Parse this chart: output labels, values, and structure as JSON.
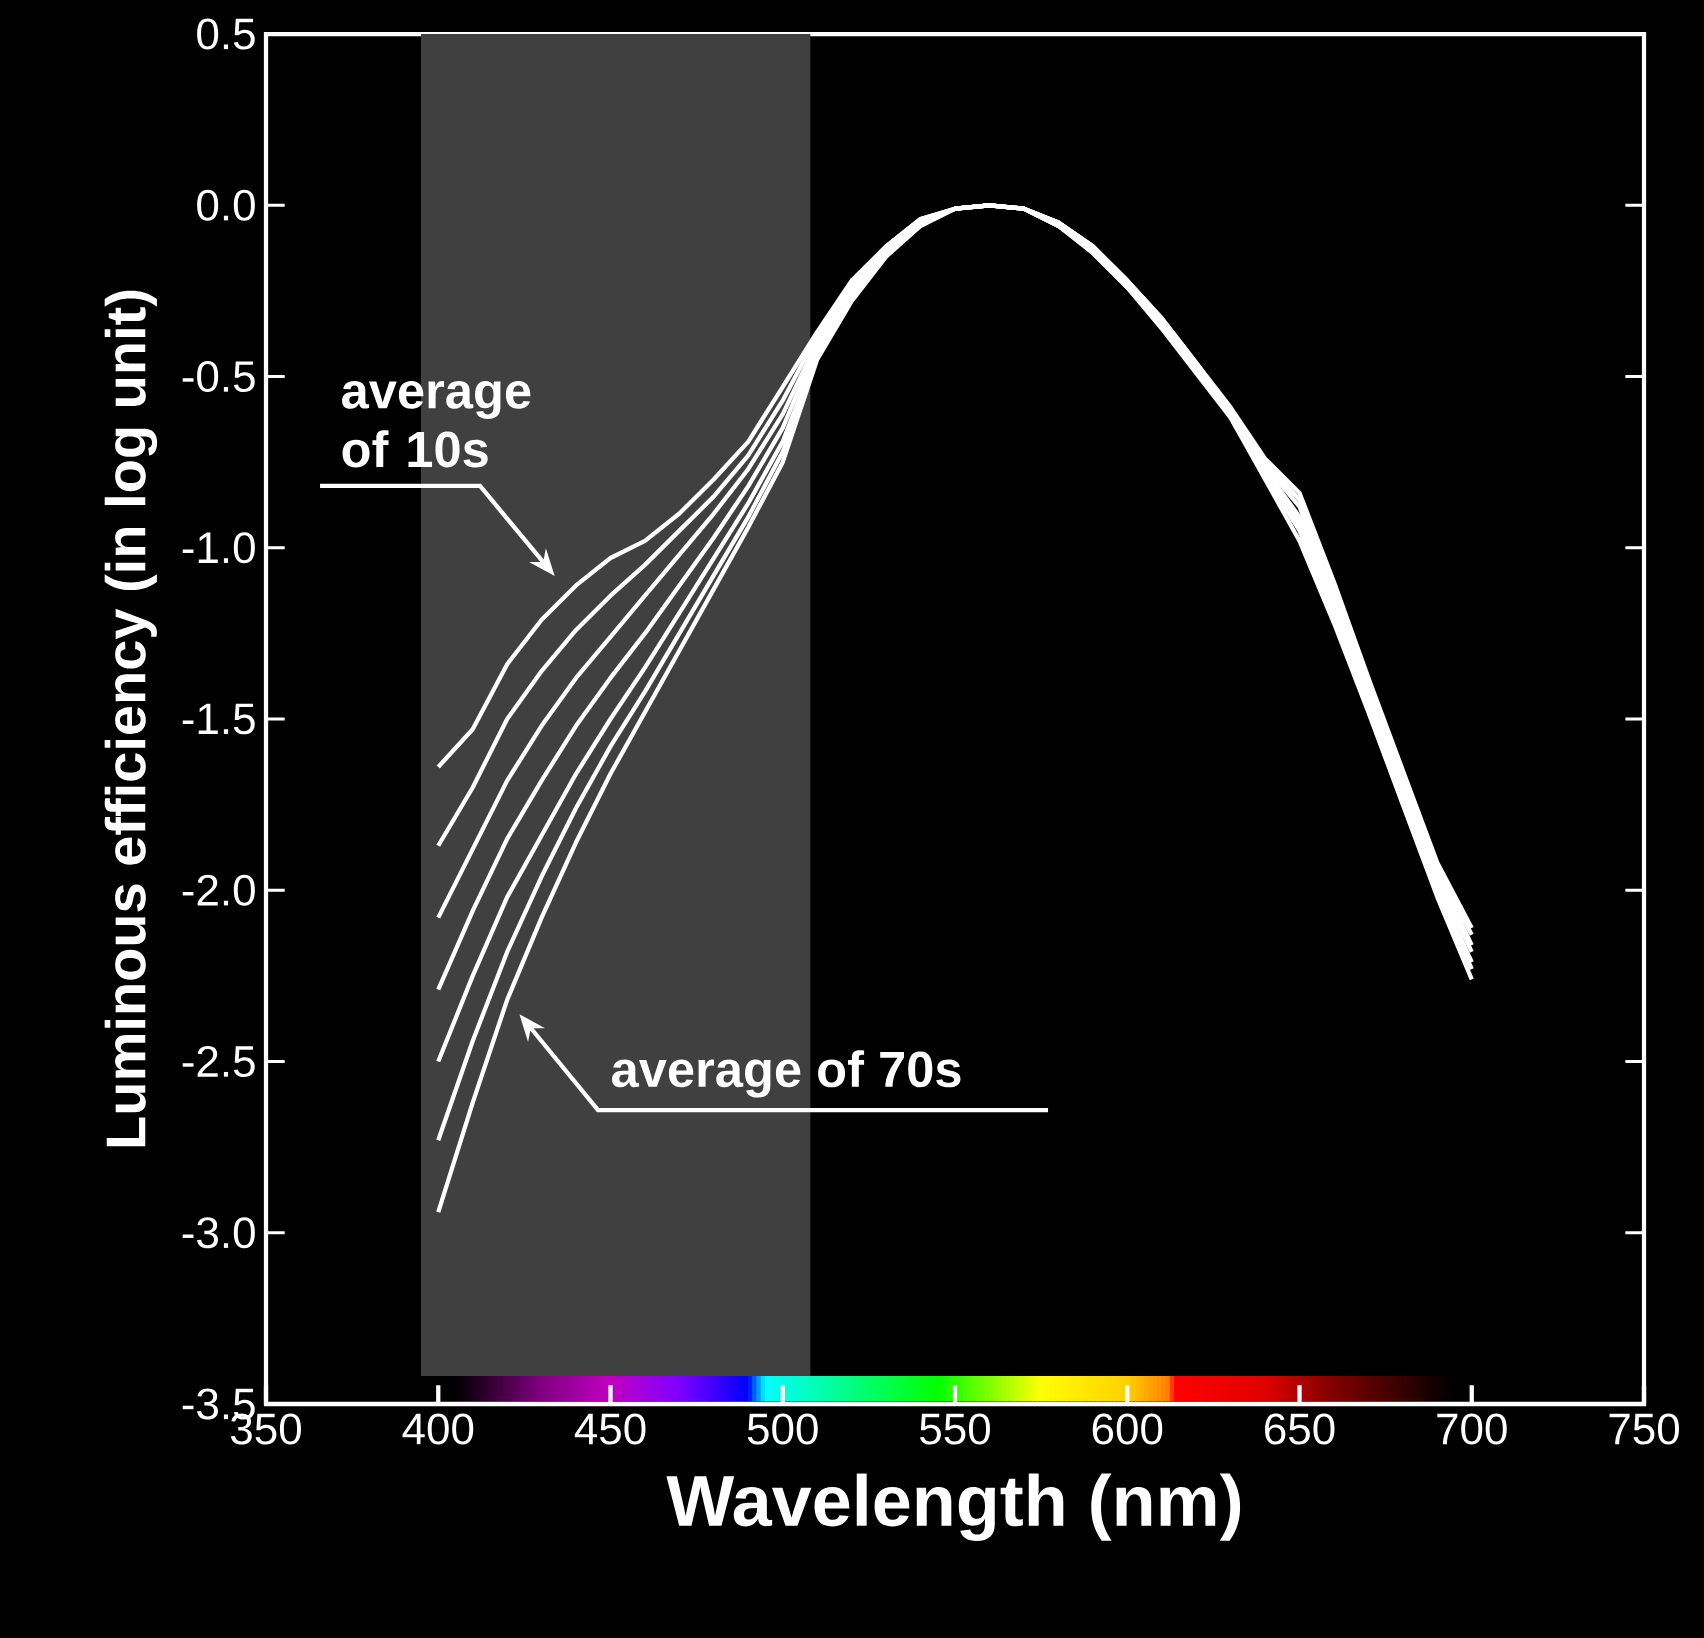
{
  "chart_data": {
    "type": "line",
    "xlabel": "Wavelength (nm)",
    "ylabel": "Luminous efficiency (in log unit)",
    "x": [
      400,
      410,
      420,
      430,
      440,
      450,
      460,
      470,
      480,
      490,
      500,
      510,
      520,
      530,
      540,
      550,
      560,
      570,
      580,
      590,
      600,
      610,
      620,
      630,
      640,
      650,
      660,
      670,
      680,
      690,
      700
    ],
    "series": [
      {
        "color": "#ffffff",
        "values": [
          -1.64,
          -1.53,
          -1.34,
          -1.21,
          -1.11,
          -1.03,
          -0.98,
          -0.9,
          -0.8,
          -0.69,
          -0.53,
          -0.37,
          -0.22,
          -0.12,
          -0.04,
          -0.01,
          0,
          -0.01,
          -0.05,
          -0.12,
          -0.22,
          -0.33,
          -0.46,
          -0.59,
          -0.74,
          -0.84,
          -1.1,
          -1.38,
          -1.65,
          -1.92,
          -2.11
        ]
      },
      {
        "color": "#ffffff",
        "values": [
          -1.87,
          -1.7,
          -1.5,
          -1.36,
          -1.24,
          -1.14,
          -1.05,
          -0.95,
          -0.85,
          -0.73,
          -0.57,
          -0.38,
          -0.23,
          -0.12,
          -0.04,
          -0.01,
          0,
          -0.01,
          -0.05,
          -0.12,
          -0.22,
          -0.33,
          -0.46,
          -0.6,
          -0.75,
          -0.86,
          -1.12,
          -1.4,
          -1.67,
          -1.94,
          -2.13
        ]
      },
      {
        "color": "#ffffff",
        "values": [
          -2.08,
          -1.88,
          -1.68,
          -1.52,
          -1.38,
          -1.26,
          -1.14,
          -1.02,
          -0.9,
          -0.77,
          -0.61,
          -0.4,
          -0.24,
          -0.13,
          -0.05,
          -0.01,
          0,
          -0.01,
          -0.05,
          -0.12,
          -0.22,
          -0.34,
          -0.47,
          -0.6,
          -0.76,
          -0.88,
          -1.14,
          -1.41,
          -1.69,
          -1.95,
          -2.16
        ]
      },
      {
        "color": "#ffffff",
        "values": [
          -2.29,
          -2.06,
          -1.85,
          -1.68,
          -1.52,
          -1.38,
          -1.25,
          -1.11,
          -0.97,
          -0.82,
          -0.65,
          -0.41,
          -0.25,
          -0.13,
          -0.05,
          -0.01,
          0,
          -0.01,
          -0.06,
          -0.13,
          -0.23,
          -0.34,
          -0.47,
          -0.61,
          -0.77,
          -0.91,
          -1.16,
          -1.43,
          -1.7,
          -1.97,
          -2.18
        ]
      },
      {
        "color": "#ffffff",
        "values": [
          -2.5,
          -2.25,
          -2.02,
          -1.84,
          -1.66,
          -1.5,
          -1.35,
          -1.19,
          -1.03,
          -0.87,
          -0.69,
          -0.43,
          -0.26,
          -0.14,
          -0.05,
          -0.01,
          0,
          -0.01,
          -0.06,
          -0.13,
          -0.23,
          -0.35,
          -0.48,
          -0.61,
          -0.78,
          -0.93,
          -1.18,
          -1.45,
          -1.72,
          -1.99,
          -2.21
        ]
      },
      {
        "color": "#ffffff",
        "values": [
          -2.73,
          -2.44,
          -2.18,
          -1.96,
          -1.76,
          -1.58,
          -1.42,
          -1.25,
          -1.08,
          -0.91,
          -0.72,
          -0.44,
          -0.27,
          -0.14,
          -0.06,
          -0.01,
          0,
          -0.01,
          -0.06,
          -0.13,
          -0.24,
          -0.35,
          -0.48,
          -0.62,
          -0.79,
          -0.95,
          -1.2,
          -1.46,
          -1.73,
          -2.0,
          -2.23
        ]
      },
      {
        "color": "#ffffff",
        "values": [
          -2.94,
          -2.62,
          -2.32,
          -2.08,
          -1.86,
          -1.66,
          -1.48,
          -1.3,
          -1.12,
          -0.94,
          -0.75,
          -0.45,
          -0.28,
          -0.15,
          -0.06,
          -0.01,
          0,
          -0.01,
          -0.06,
          -0.14,
          -0.24,
          -0.36,
          -0.49,
          -0.62,
          -0.8,
          -0.98,
          -1.22,
          -1.48,
          -1.75,
          -2.02,
          -2.26
        ]
      }
    ],
    "xlim": [
      350,
      750
    ],
    "xticks": [
      350,
      400,
      450,
      500,
      550,
      600,
      650,
      700,
      750
    ],
    "ylim": [
      -3.5,
      0.5
    ],
    "yticks": [
      {
        "value": 0.5,
        "label": "0.5"
      },
      {
        "value": 0,
        "label": "0.0"
      },
      {
        "value": -0.5,
        "label": "-0.5"
      },
      {
        "value": -1,
        "label": "-1.0"
      },
      {
        "value": -1.5,
        "label": "-1.5"
      },
      {
        "value": -2,
        "label": "-2.0"
      },
      {
        "value": -2.5,
        "label": "-2.5"
      },
      {
        "value": -3,
        "label": "-3.0"
      },
      {
        "value": -3.5,
        "label": "-3.5"
      }
    ],
    "bands": [
      {
        "axis": "x",
        "from": 395,
        "to": 508,
        "color": "#404040"
      }
    ],
    "annotations": [
      "average of 10s",
      {
        "text": "average of 70s",
        "x": 422,
        "y": -2.35
      }
    ],
    "line_style": "solid",
    "marker": "none",
    "grid": false
  }
}
